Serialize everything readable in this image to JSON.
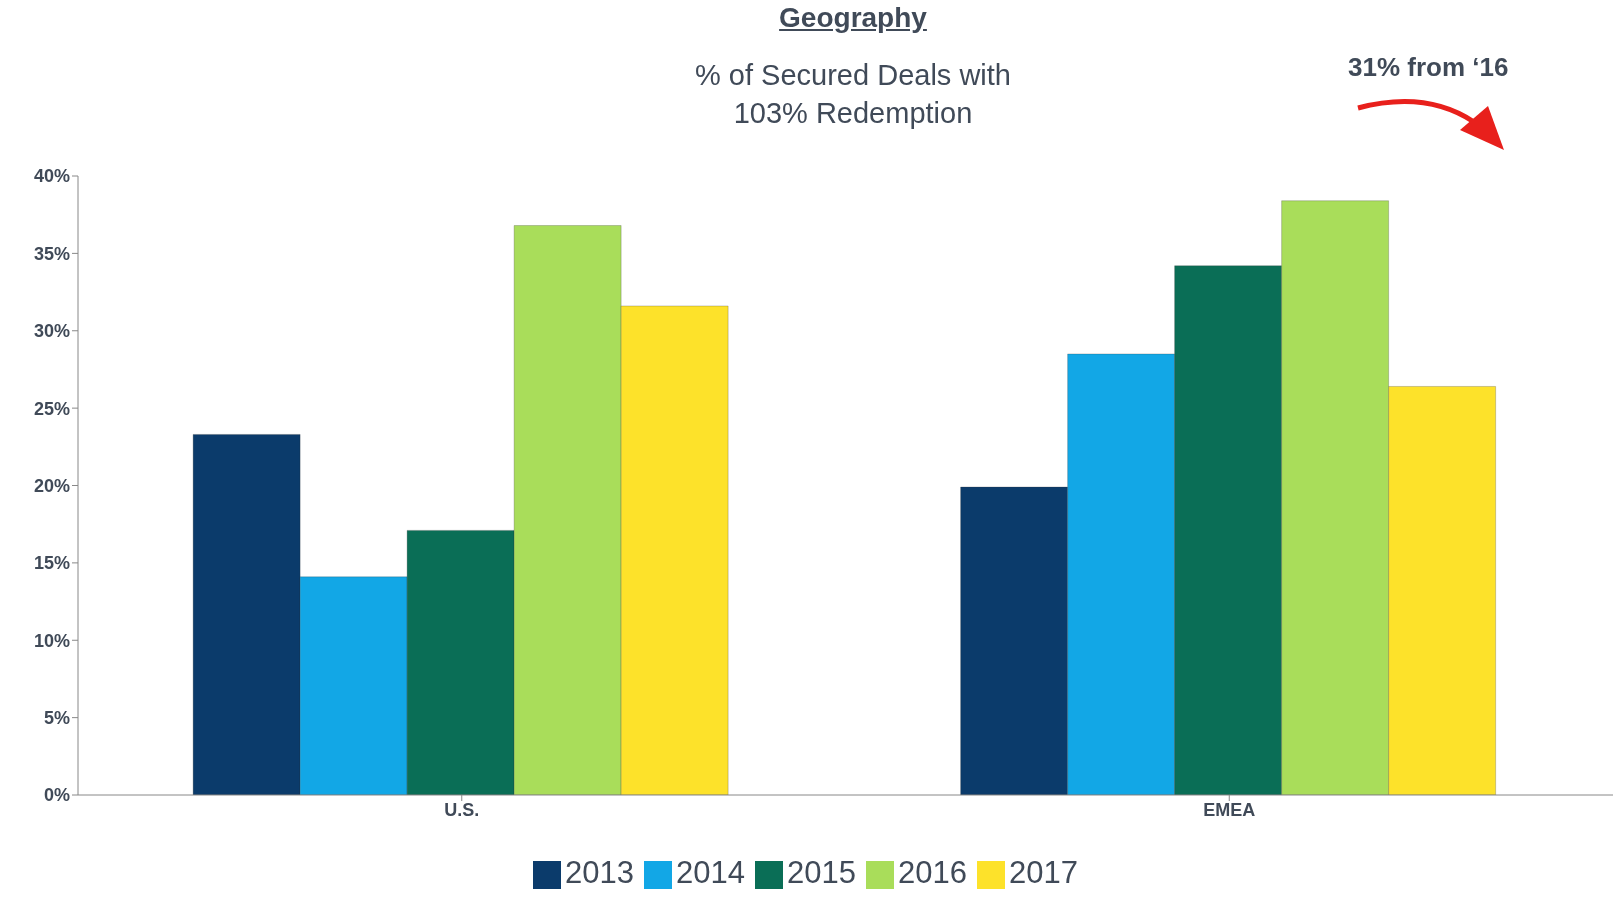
{
  "chart_data": {
    "type": "bar",
    "title": "Geography",
    "subtitle": "% of Secured Deals with\n103% Redemption",
    "annotations": [
      "31% from ‘16"
    ],
    "categories": [
      "U.S.",
      "EMEA"
    ],
    "series": [
      {
        "name": "2013",
        "color": "#0b3b6b",
        "values": [
          23.3,
          19.9
        ]
      },
      {
        "name": "2014",
        "color": "#12a7e6",
        "values": [
          14.1,
          28.5
        ]
      },
      {
        "name": "2015",
        "color": "#0a6e56",
        "values": [
          17.1,
          34.2
        ]
      },
      {
        "name": "2016",
        "color": "#a9dd5a",
        "values": [
          36.8,
          38.4
        ]
      },
      {
        "name": "2017",
        "color": "#fde22a",
        "values": [
          31.6,
          26.4
        ]
      }
    ],
    "ylim": [
      0,
      40
    ],
    "yticks": [
      {
        "value": 0,
        "label": "0%"
      },
      {
        "value": 5,
        "label": "5%"
      },
      {
        "value": 10,
        "label": "10%"
      },
      {
        "value": 15,
        "label": "15%"
      },
      {
        "value": 20,
        "label": "20%"
      },
      {
        "value": 25,
        "label": "25%"
      },
      {
        "value": 30,
        "label": "30%"
      },
      {
        "value": 35,
        "label": "35%"
      },
      {
        "value": 40,
        "label": "40%"
      }
    ],
    "grid": false,
    "legend": "bottom"
  }
}
